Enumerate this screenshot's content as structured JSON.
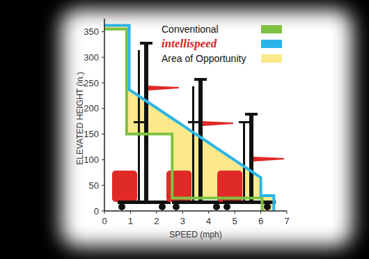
{
  "chart_data": {
    "type": "line",
    "x_label": "SPEED (mph)",
    "y_label": "ELEVATED HEIGHT (in.)",
    "xlim": [
      0,
      7
    ],
    "xticks": [
      0,
      1,
      2,
      3,
      4,
      5,
      6,
      7
    ],
    "ylim": [
      0,
      375
    ],
    "yticks": [
      0,
      50,
      100,
      150,
      200,
      250,
      300,
      350
    ],
    "grid": false,
    "legend": "upper right",
    "series": [
      {
        "name": "Conventional",
        "color": "#7dc242",
        "line_style": "solid",
        "x": [
          0,
          0.85,
          0.85,
          2.6,
          2.6,
          6.05,
          6.05
        ],
        "values": [
          355,
          355,
          150,
          150,
          25,
          25,
          0
        ]
      },
      {
        "name": "intellispeed",
        "color": "#2bb5e8",
        "line_style": "solid",
        "x": [
          0,
          0.95,
          0.95,
          6.0,
          6.0,
          6.5,
          6.5
        ],
        "values": [
          362,
          362,
          237,
          65,
          30,
          30,
          0
        ]
      },
      {
        "name": "Area of Opportunity",
        "type": "area",
        "color": "#fce98c",
        "x": [
          0,
          0.95,
          0.95,
          6.0,
          6.0,
          6.5,
          6.5,
          6.05,
          6.05,
          2.6,
          2.6,
          0.85,
          0.85,
          0
        ],
        "values": [
          362,
          362,
          237,
          65,
          30,
          30,
          0,
          0,
          25,
          25,
          150,
          150,
          355,
          355
        ]
      }
    ]
  }
}
